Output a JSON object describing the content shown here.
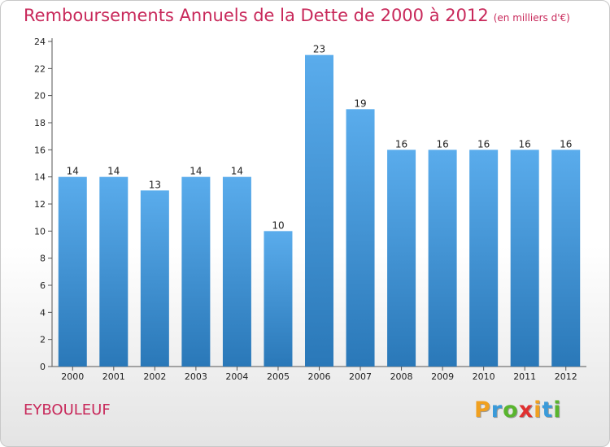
{
  "header": {
    "title": "Remboursements Annuels de la Dette de 2000 à 2012",
    "unit": "(en milliers d'€)"
  },
  "footer": {
    "commune": "EYBOULEUF",
    "logo_letters": [
      "P",
      "r",
      "o",
      "x",
      "i",
      "t",
      "i"
    ],
    "logo_colors": [
      "#f0a020",
      "#3a9ad9",
      "#59b52e",
      "#e03030",
      "#f0a020",
      "#3a9ad9",
      "#59b52e"
    ]
  },
  "chart_data": {
    "type": "bar",
    "title": "Remboursements Annuels de la Dette de 2000 à 2012",
    "subtitle": "(en milliers d'€)",
    "categories": [
      "2000",
      "2001",
      "2002",
      "2003",
      "2004",
      "2005",
      "2006",
      "2007",
      "2008",
      "2009",
      "2010",
      "2011",
      "2012"
    ],
    "values": [
      14,
      14,
      13,
      14,
      14,
      10,
      23,
      19,
      16,
      16,
      16,
      16,
      16
    ],
    "data_labels": [
      "14",
      "14",
      "13",
      "14",
      "14",
      "10",
      "23",
      "19",
      "16",
      "16",
      "16",
      "16",
      "16"
    ],
    "yticks": [
      0,
      2,
      4,
      6,
      8,
      10,
      12,
      14,
      16,
      18,
      20,
      22,
      24
    ],
    "ylim": [
      0,
      24
    ],
    "grid": false,
    "bar_color_top": "#5aacec",
    "bar_color_bottom": "#2a78b8"
  }
}
